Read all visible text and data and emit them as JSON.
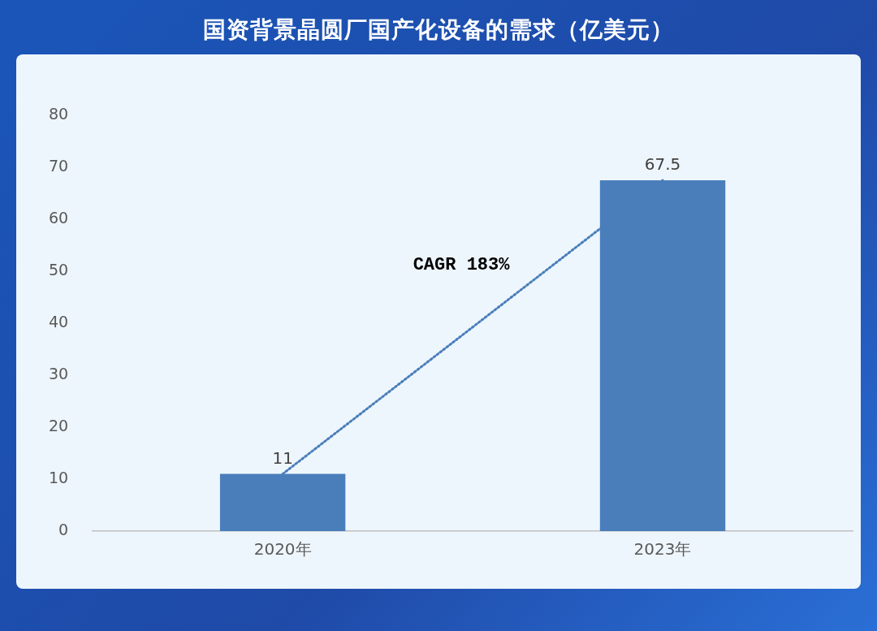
{
  "chart_data": {
    "type": "bar",
    "title": "国资背景晶圆厂国产化设备的需求（亿美元）",
    "categories": [
      "2020年",
      "2023年"
    ],
    "series": [
      {
        "color": "#4a7ebb",
        "values": [
          11,
          67.5
        ],
        "value_labels": [
          "11",
          "67.5"
        ]
      },
      {
        "type": "line",
        "x": [
          "2020年",
          "2023年"
        ],
        "values": [
          11,
          67.5
        ],
        "color": "#4a7ebb",
        "line_style": "dotted",
        "marker": "none"
      }
    ],
    "ylim": [
      0,
      80
    ],
    "yticks": [
      0,
      10,
      20,
      30,
      40,
      50,
      60,
      70,
      80
    ],
    "grid": false,
    "legend": false,
    "annotations": [
      "CAGR 183%"
    ]
  }
}
